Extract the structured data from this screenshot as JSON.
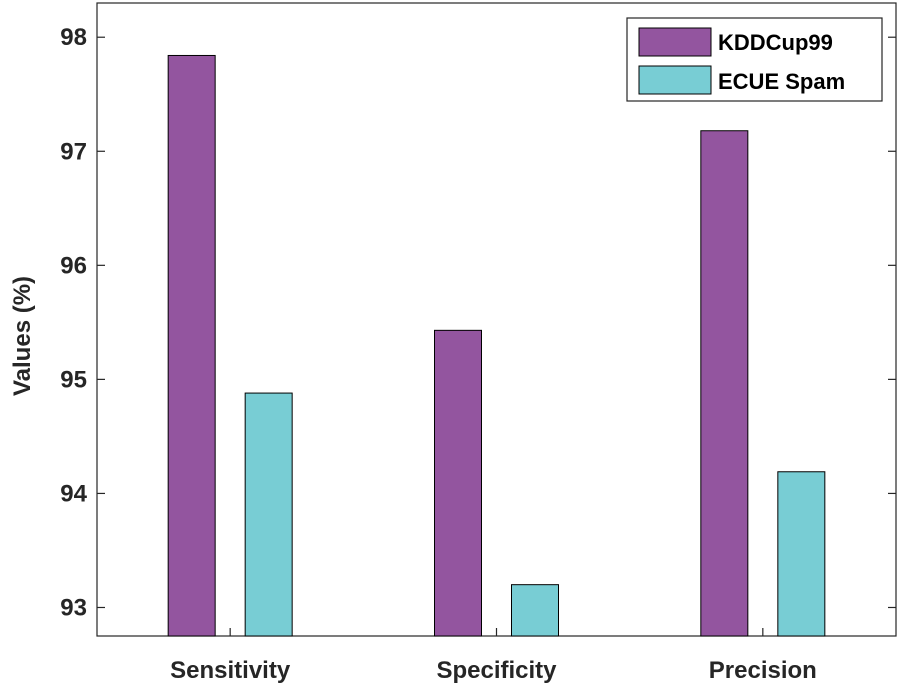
{
  "chart_data": {
    "type": "bar",
    "title": "",
    "xlabel": "",
    "ylabel": "Values (%)",
    "categories": [
      "Sensitivity",
      "Specificity",
      "Precision"
    ],
    "series": [
      {
        "name": "KDDCup99",
        "values": [
          97.84,
          95.43,
          97.18
        ],
        "color": "#93559f"
      },
      {
        "name": "ECUE Spam",
        "values": [
          94.88,
          93.2,
          94.19
        ],
        "color": "#78cdd4"
      }
    ],
    "ylim": [
      92.75,
      98.3
    ],
    "yticks": [
      93,
      94,
      95,
      96,
      97,
      98
    ],
    "grid": false,
    "legend_position": "top-right"
  }
}
